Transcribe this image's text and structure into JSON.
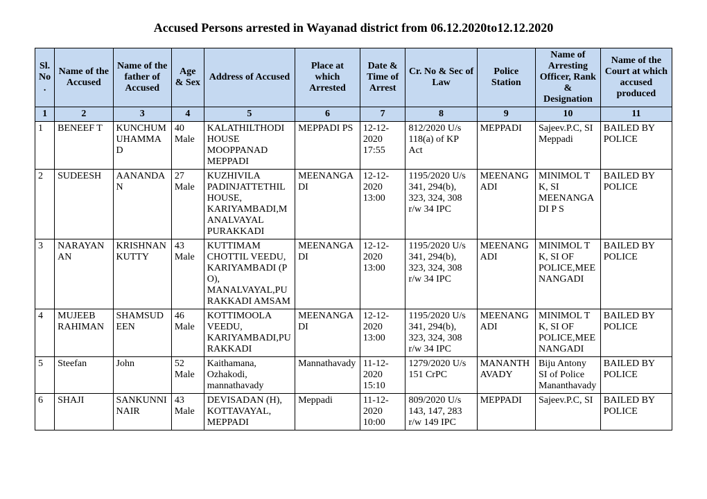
{
  "title": "Accused Persons arrested in  Wayanad   district from   06.12.2020to12.12.2020",
  "columns": [
    "Sl. No.",
    "Name of the Accused",
    "Name of the father of Accused",
    "Age & Sex",
    "Address of Accused",
    "Place at which Arrested",
    "Date & Time of Arrest",
    "Cr. No & Sec of Law",
    "Police Station",
    "Name of Arresting Officer, Rank & Designation",
    "Name of the Court at which accused produced"
  ],
  "colnums": [
    "1",
    "2",
    "3",
    "4",
    "5",
    "6",
    "7",
    "8",
    "9",
    "10",
    "11"
  ],
  "rows": [
    {
      "c1": "1",
      "c2": "BENEEF T",
      "c3": "KUNCHUMUHAMMAD",
      "c4": "40 Male",
      "c5": "KALATHILTHODI HOUSE MOOPPANAD MEPPADI",
      "c6": "MEPPADI PS",
      "c7": "12-12-2020 17:55",
      "c8": "812/2020 U/s 118(a) of KP Act",
      "c9": "MEPPADI",
      "c10": "Sajeev.P.C, SI Meppadi",
      "c11": "BAILED BY POLICE"
    },
    {
      "c1": "2",
      "c2": "SUDEESH",
      "c3": "AANANDAN",
      "c4": "27 Male",
      "c5": "KUZHIVILA PADINJATTETHIL HOUSE, KARIYAMBADI,MANALVAYAL PURAKKADI",
      "c6": "MEENANGADI",
      "c7": "12-12-2020 13:00",
      "c8": "1195/2020 U/s 341, 294(b), 323, 324, 308 r/w 34 IPC",
      "c9": "MEENANGADI",
      "c10": "MINIMOL T K, SI MEENANGADI P S",
      "c11": "BAILED BY POLICE"
    },
    {
      "c1": "3",
      "c2": "NARAYANAN",
      "c3": "KRISHNAN KUTTY",
      "c4": "43 Male",
      "c5": "KUTTIMAM CHOTTIL VEEDU, KARIYAMBADI (P O), MANALVAYAL,PURAKKADI AMSAM",
      "c6": "MEENANGADI",
      "c7": "12-12-2020 13:00",
      "c8": "1195/2020 U/s 341, 294(b), 323, 324, 308 r/w 34 IPC",
      "c9": "MEENANGADI",
      "c10": "MINIMOL T K, SI OF POLICE,MEENANGADI",
      "c11": "BAILED BY POLICE"
    },
    {
      "c1": "4",
      "c2": "MUJEEB RAHIMAN",
      "c3": "SHAMSUDEEN",
      "c4": "46 Male",
      "c5": "KOTTIMOOLA VEEDU, KARIYAMBADI,PURAKKADI",
      "c6": "MEENANGADI",
      "c7": "12-12-2020 13:00",
      "c8": "1195/2020 U/s 341, 294(b), 323, 324, 308 r/w 34 IPC",
      "c9": "MEENANGADI",
      "c10": "MINIMOL T K, SI OF POLICE,MEENANGADI",
      "c11": "BAILED BY POLICE"
    },
    {
      "c1": "5",
      "c2": "Steefan",
      "c3": "John",
      "c4": "52 Male",
      "c5": "Kaithamana, Ozhakodi, mannathavady",
      "c6": "Mannathavady",
      "c7": "11-12-2020 15:10",
      "c8": "1279/2020 U/s 151 CrPC",
      "c9": "MANANTHAVADY",
      "c10": "Biju Antony SI of Police Mananthavady",
      "c11": "BAILED BY POLICE"
    },
    {
      "c1": "6",
      "c2": "SHAJI",
      "c3": "SANKUNNI NAIR",
      "c4": "43 Male",
      "c5": "DEVISADAN (H), KOTTAVAYAL, MEPPADI",
      "c6": "Meppadi",
      "c7": "11-12-2020 10:00",
      "c8": "809/2020 U/s 143, 147, 283 r/w 149 IPC",
      "c9": "MEPPADI",
      "c10": "Sajeev.P.C, SI",
      "c11": "BAILED BY POLICE"
    }
  ]
}
